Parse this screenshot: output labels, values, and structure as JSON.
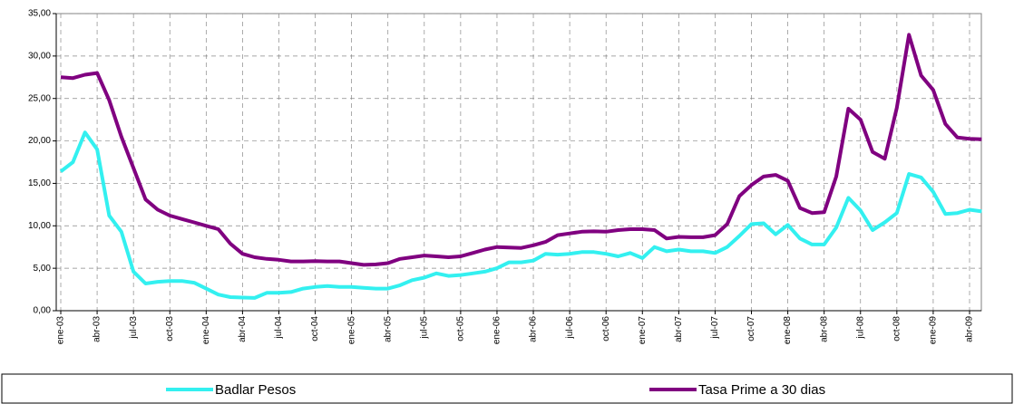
{
  "chart_data": {
    "type": "line",
    "categories": [
      "ene-03",
      null,
      null,
      "abr-03",
      null,
      null,
      "jul-03",
      null,
      null,
      "oct-03",
      null,
      null,
      "ene-04",
      null,
      null,
      "abr-04",
      null,
      null,
      "jul-04",
      null,
      null,
      "oct-04",
      null,
      null,
      "ene-05",
      null,
      null,
      "abr-05",
      null,
      null,
      "jul-05",
      null,
      null,
      "oct-05",
      null,
      null,
      "ene-06",
      null,
      null,
      "abr-06",
      null,
      null,
      "jul-06",
      null,
      null,
      "oct-06",
      null,
      null,
      "ene-07",
      null,
      null,
      "abr-07",
      null,
      null,
      "jul-07",
      null,
      null,
      "oct-07",
      null,
      null,
      "ene-08",
      null,
      null,
      "abr-08",
      null,
      null,
      "jul-08",
      null,
      null,
      "oct-08",
      null,
      null,
      "ene-09",
      null,
      null,
      "abr-09",
      null
    ],
    "series": [
      {
        "name": "Badlar Pesos",
        "color": "#33f0f0",
        "values": [
          16.4,
          17.5,
          21,
          19,
          11.2,
          9.3,
          4.6,
          3.2,
          3.4,
          3.5,
          3.5,
          3.3,
          2.6,
          1.9,
          1.6,
          1.55,
          1.5,
          2.1,
          2.1,
          2.2,
          2.6,
          2.8,
          2.9,
          2.8,
          2.8,
          2.7,
          2.6,
          2.6,
          3.0,
          3.6,
          3.9,
          4.4,
          4.1,
          4.2,
          4.4,
          4.6,
          5.0,
          5.7,
          5.7,
          5.9,
          6.7,
          6.6,
          6.7,
          6.9,
          6.9,
          6.7,
          6.4,
          6.8,
          6.2,
          7.5,
          7.0,
          7.2,
          7.0,
          7.0,
          6.8,
          7.5,
          8.8,
          10.2,
          10.3,
          9.0,
          10.1,
          8.5,
          7.8,
          7.8,
          9.8,
          13.3,
          11.8,
          9.5,
          10.4,
          11.5,
          16.1,
          15.7,
          14.0,
          11.4,
          11.5,
          11.9,
          11.7
        ]
      },
      {
        "name": "Tasa Prime a 30 dias",
        "color": "#800080",
        "values": [
          27.5,
          27.4,
          27.8,
          28.0,
          24.8,
          20.5,
          16.8,
          13.1,
          11.9,
          11.2,
          10.8,
          10.4,
          10.0,
          9.6,
          7.9,
          6.7,
          6.3,
          6.1,
          6.0,
          5.8,
          5.8,
          5.85,
          5.8,
          5.8,
          5.6,
          5.4,
          5.45,
          5.6,
          6.1,
          6.3,
          6.5,
          6.4,
          6.3,
          6.4,
          6.8,
          7.2,
          7.5,
          7.45,
          7.4,
          7.7,
          8.1,
          8.9,
          9.1,
          9.3,
          9.35,
          9.3,
          9.5,
          9.6,
          9.6,
          9.5,
          8.5,
          8.7,
          8.65,
          8.65,
          8.9,
          10.2,
          13.5,
          14.8,
          15.8,
          16.0,
          15.3,
          12.1,
          11.5,
          11.6,
          15.8,
          23.8,
          22.5,
          18.7,
          17.9,
          23.9,
          32.5,
          27.7,
          26.0,
          22.0,
          20.4,
          20.25,
          20.2
        ]
      }
    ],
    "ylim": [
      0,
      35
    ],
    "yticks": [
      {
        "value": 0,
        "label": "0,00"
      },
      {
        "value": 5,
        "label": "5,00"
      },
      {
        "value": 10,
        "label": "10,00"
      },
      {
        "value": 15,
        "label": "15,00"
      },
      {
        "value": 20,
        "label": "20,00"
      },
      {
        "value": 25,
        "label": "25,00"
      },
      {
        "value": 30,
        "label": "30,00"
      },
      {
        "value": 35,
        "label": "35,00"
      }
    ],
    "grid": true
  }
}
